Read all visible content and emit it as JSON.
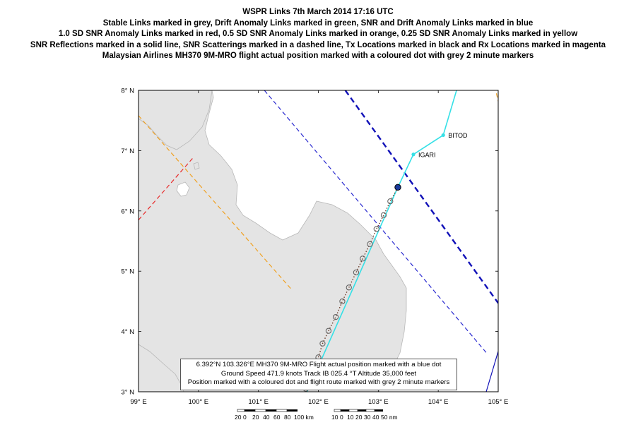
{
  "title_lines": [
    "WSPR Links 7th March 2014 17:16 UTC",
    "Stable Links marked in grey, Drift Anomaly Links marked in green, SNR and Drift Anomaly Links marked in blue",
    "1.0 SD SNR Anomaly Links marked in red, 0.5 SD SNR Anomaly Links marked in orange, 0.25 SD SNR Anomaly Links marked in yellow",
    "SNR Reflections marked in a solid line, SNR Scatterings marked in a dashed line, Tx Locations marked in black and Rx Locations marked in magenta",
    "Malaysian Airlines MH370 9M-MRO flight actual position marked with a coloured dot with grey 2 minute markers"
  ],
  "map": {
    "lon_range": [
      99,
      105
    ],
    "lat_range": [
      3,
      8
    ],
    "lon_ticks": [
      {
        "value": 99,
        "label": "99° E"
      },
      {
        "value": 100,
        "label": "100° E"
      },
      {
        "value": 101,
        "label": "101° E"
      },
      {
        "value": 102,
        "label": "102° E"
      },
      {
        "value": 103,
        "label": "103° E"
      },
      {
        "value": 104,
        "label": "104° E"
      },
      {
        "value": 105,
        "label": "105° E"
      }
    ],
    "lat_ticks": [
      {
        "value": 3,
        "label": "3° N"
      },
      {
        "value": 4,
        "label": "4° N"
      },
      {
        "value": 5,
        "label": "5° N"
      },
      {
        "value": 6,
        "label": "6° N"
      },
      {
        "value": 7,
        "label": "7° N"
      },
      {
        "value": 8,
        "label": "8° N"
      }
    ],
    "colors": {
      "land": "#e4e4e4",
      "land_edge": "#b8b8b8",
      "route": "#35e0e6",
      "red_link": "#e82a2a",
      "orange_link": "#f0a020",
      "blue_link": "#2a2ad0",
      "dark_blue_link": "#1212b8",
      "marker": "#666666",
      "position_dot": "#1a3a9a"
    },
    "waypoints": [
      {
        "name": "BITOD",
        "lon": 104.083,
        "lat": 7.257
      },
      {
        "name": "IGARI",
        "lon": 103.585,
        "lat": 6.937
      }
    ],
    "route": [
      {
        "lon": 101.79,
        "lat": 2.95
      },
      {
        "lon": 103.326,
        "lat": 6.392
      },
      {
        "lon": 103.585,
        "lat": 6.937
      },
      {
        "lon": 104.083,
        "lat": 7.257
      },
      {
        "lon": 104.32,
        "lat": 8.05
      }
    ],
    "aircraft_position": {
      "lon": 103.326,
      "lat": 6.392
    },
    "flight_markers": [
      {
        "lon": 101.79,
        "lat": 3.05
      },
      {
        "lon": 102.0,
        "lat": 3.57
      },
      {
        "lon": 102.07,
        "lat": 3.8
      },
      {
        "lon": 102.17,
        "lat": 4.01
      },
      {
        "lon": 102.29,
        "lat": 4.24
      },
      {
        "lon": 102.4,
        "lat": 4.5
      },
      {
        "lon": 102.51,
        "lat": 4.73
      },
      {
        "lon": 102.63,
        "lat": 4.98
      },
      {
        "lon": 102.74,
        "lat": 5.21
      },
      {
        "lon": 102.86,
        "lat": 5.45
      },
      {
        "lon": 102.97,
        "lat": 5.7
      },
      {
        "lon": 103.09,
        "lat": 5.93
      },
      {
        "lon": 103.2,
        "lat": 6.16
      }
    ],
    "links": [
      {
        "color": "red",
        "style": "dashed",
        "from": {
          "lon": 99.0,
          "lat": 5.85
        },
        "to": {
          "lon": 99.9,
          "lat": 6.87
        }
      },
      {
        "color": "orange",
        "style": "dashed",
        "from": {
          "lon": 99.0,
          "lat": 7.58
        },
        "to": {
          "lon": 101.55,
          "lat": 4.7
        }
      },
      {
        "color": "blue",
        "style": "dashed",
        "from": {
          "lon": 101.1,
          "lat": 8.0
        },
        "to": {
          "lon": 104.8,
          "lat": 3.65
        }
      },
      {
        "color": "dark_blue",
        "style": "dashed_bold",
        "from": {
          "lon": 102.45,
          "lat": 8.0
        },
        "to": {
          "lon": 105.0,
          "lat": 4.47
        }
      },
      {
        "color": "orange",
        "style": "dashed",
        "from": {
          "lon": 104.97,
          "lat": 7.95
        },
        "to": {
          "lon": 105.0,
          "lat": 7.82
        }
      },
      {
        "color": "dark_blue",
        "style": "solid",
        "from": {
          "lon": 104.8,
          "lat": 3.0
        },
        "to": {
          "lon": 105.0,
          "lat": 3.67
        }
      }
    ]
  },
  "info_box": {
    "lines": [
      "6.392°N 103.326°E MH370 9M-MRO Flight actual position marked with a blue dot",
      "Ground Speed 471.9 knots Track IB 025.4 °T Altitude 35,000 feet",
      "Position marked with a coloured dot and flight route marked with grey 2 minute markers"
    ]
  },
  "scale_km": {
    "labels": [
      "20",
      "0",
      "20",
      "40",
      "60",
      "80",
      "100 km"
    ]
  },
  "scale_nm": {
    "labels": [
      "10",
      "0",
      "10",
      "20",
      "30",
      "40",
      "50 nm"
    ]
  }
}
